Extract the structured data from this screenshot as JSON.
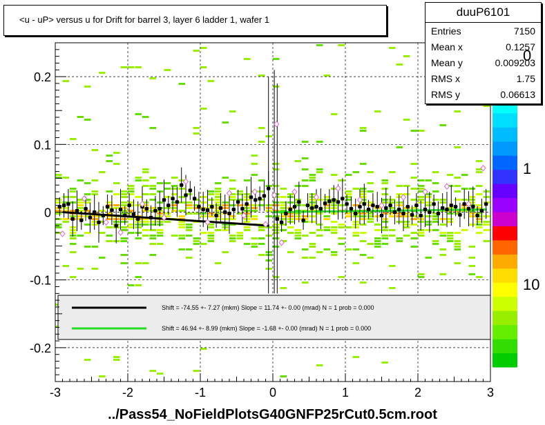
{
  "title": "<u - uP>       versus   u for Drift for barrel 3, layer 6 ladder 1, wafer 1",
  "stats": {
    "name": "duuP6101",
    "rows": [
      {
        "key": "Entries",
        "value": "7150"
      },
      {
        "key": "Mean x",
        "value": "0.1257"
      },
      {
        "key": "Mean y",
        "value": "0.009203"
      },
      {
        "key": "RMS x",
        "value": "1.75"
      },
      {
        "key": "RMS y",
        "value": "0.06613"
      }
    ]
  },
  "palette_labels": [
    "0",
    "1",
    "10"
  ],
  "footer": "../Pass54_NoFieldPlotsG40GNFP25rCut0.5cm.root",
  "colors": {
    "fit_black": "#000000",
    "fit_green": "#22dd22",
    "marker_pink": "#dd66cc",
    "palette": [
      "#ffffff",
      "#00cc00",
      "#33dd00",
      "#66ee00",
      "#99ee00",
      "#ccff00",
      "#ffff00",
      "#ffdd00",
      "#ffaa00",
      "#ff6600",
      "#ff0000",
      "#cc00cc",
      "#9900ff",
      "#6600ff",
      "#3333ff",
      "#0066ff",
      "#0099ff",
      "#00bbff",
      "#00ddff",
      "#00ffff",
      "#00ffaa",
      "#00ff66",
      "#00ff33",
      "#00ee00"
    ]
  },
  "legend": [
    {
      "color": "#000000",
      "text": "Shift =   -74.55 +- 7.27 (mkm) Slope =    11.74 +- 0.00 (mrad)  N = 1 prob = 0.000"
    },
    {
      "color": "#22dd22",
      "text": "Shift =    46.94 +- 8.99 (mkm) Slope =    -1.68 +- 0.00 (mrad)  N = 1 prob = 0.000"
    }
  ],
  "chart_data": {
    "type": "scatter",
    "xlim": [
      -3,
      3
    ],
    "ylim": [
      -0.25,
      0.25
    ],
    "x_ticks": [
      "-3",
      "-2",
      "-1",
      "0",
      "1",
      "2",
      "3"
    ],
    "y_ticks": [
      "-0.2",
      "-0.1",
      "0",
      "0.1",
      "0.2"
    ],
    "grid": true,
    "series": [
      {
        "x": [
          -2.94,
          -2.88,
          -2.82,
          -2.76,
          -2.7,
          -2.64,
          -2.58,
          -2.52,
          -2.46,
          -2.4,
          -2.34,
          -2.28,
          -2.22,
          -2.16,
          -2.1,
          -2.04,
          -1.98,
          -1.92,
          -1.86,
          -1.8,
          -1.74,
          -1.68,
          -1.62,
          -1.56,
          -1.5,
          -1.44,
          -1.38,
          -1.32,
          -1.26,
          -1.2,
          -1.14,
          -1.08,
          -1.02,
          -0.96,
          -0.9,
          -0.84,
          -0.78,
          -0.72,
          -0.66,
          -0.6,
          -0.54,
          -0.48,
          -0.42,
          -0.36,
          -0.3,
          -0.24,
          -0.18,
          -0.12,
          -0.06,
          0.06,
          0.12,
          0.18,
          0.24,
          0.3,
          0.36,
          0.42,
          0.48,
          0.54,
          0.6,
          0.66,
          0.72,
          0.78,
          0.84,
          0.9,
          0.96,
          1.02,
          1.08,
          1.14,
          1.2,
          1.26,
          1.32,
          1.38,
          1.44,
          1.5,
          1.56,
          1.62,
          1.68,
          1.74,
          1.8,
          1.86,
          1.92,
          1.98,
          2.04,
          2.1,
          2.16,
          2.22,
          2.28,
          2.34,
          2.4,
          2.46,
          2.52,
          2.58,
          2.64,
          2.7,
          2.76,
          2.82,
          2.88,
          2.94
        ],
        "y": [
          0.008,
          0.01,
          0.012,
          -0.01,
          0.002,
          -0.012,
          0.005,
          -0.008,
          0.0,
          -0.015,
          -0.005,
          0.008,
          0.003,
          -0.02,
          0.004,
          -0.005,
          0.01,
          -0.003,
          -0.01,
          0.008,
          0.005,
          -0.008,
          0.002,
          0.005,
          0.018,
          0.01,
          0.02,
          0.015,
          0.04,
          0.025,
          0.032,
          0.02,
          0.008,
          0.004,
          0.003,
          0.008,
          -0.005,
          0.006,
          0.0,
          -0.002,
          0.004,
          0.015,
          0.005,
          0.012,
          0.022,
          0.018,
          0.02,
          0.024,
          0.035,
          -0.01,
          -0.015,
          -0.002,
          0.004,
          0.008,
          0.015,
          -0.012,
          0.01,
          0.006,
          0.008,
          0.005,
          0.013,
          0.016,
          0.018,
          0.015,
          0.02,
          0.012,
          0.005,
          -0.002,
          0.008,
          0.012,
          0.004,
          0.01,
          0.008,
          -0.005,
          0.006,
          0.01,
          0.0,
          0.004,
          -0.002,
          0.008,
          -0.004,
          0.01,
          -0.005,
          0.004,
          0.0,
          0.012,
          -0.002,
          0.006,
          0.004,
          0.01,
          0.008,
          -0.004,
          0.012,
          0.005,
          0.008,
          -0.005,
          0.002,
          0.012
        ]
      },
      {
        "x": [
          -2.9,
          -2.6,
          -2.3,
          -2.1,
          -1.8,
          -1.5,
          -1.2,
          -0.9,
          -0.6,
          -0.4,
          -0.25,
          -0.1,
          0.02,
          0.05,
          0.12,
          0.3,
          0.6,
          0.9,
          1.2,
          1.5,
          1.8,
          2.1,
          2.4,
          2.7,
          2.9
        ],
        "y": [
          -0.032,
          0.02,
          -0.015,
          -0.03,
          0.012,
          -0.008,
          0.045,
          -0.015,
          0.028,
          -0.005,
          0.03,
          -0.018,
          0.025,
          0.13,
          -0.045,
          0.03,
          0.022,
          0.035,
          0.018,
          0.01,
          0.022,
          0.03,
          0.038,
          0.012,
          0.065
        ]
      }
    ],
    "fits": [
      {
        "x": [
          -2.9,
          -0.05
        ],
        "y": [
          0.0,
          -0.02
        ]
      },
      {
        "x": [
          0.0,
          2.95
        ],
        "y": [
          0.0,
          0.004
        ]
      }
    ]
  }
}
